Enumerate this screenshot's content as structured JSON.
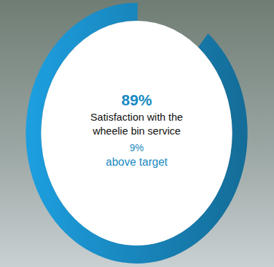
{
  "chart_data": {
    "type": "gauge",
    "title": "Satisfaction with the wheelie bin service",
    "values": [
      89
    ],
    "value_labels": [
      "89%"
    ],
    "ylim": [
      0,
      100
    ],
    "color": "#1a8fc9",
    "data_labels": true,
    "tick_labels": false,
    "annotation": {
      "value": 9,
      "label": "9%",
      "text": "above target"
    }
  }
}
